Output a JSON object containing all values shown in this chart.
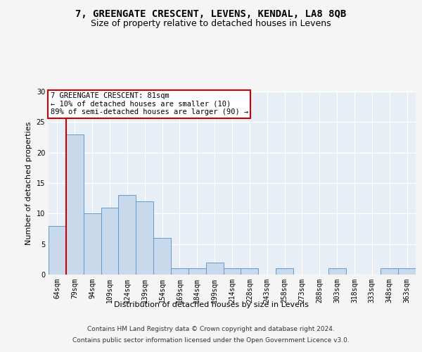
{
  "title_line1": "7, GREENGATE CRESCENT, LEVENS, KENDAL, LA8 8QB",
  "title_line2": "Size of property relative to detached houses in Levens",
  "xlabel": "Distribution of detached houses by size in Levens",
  "ylabel": "Number of detached properties",
  "categories": [
    "64sqm",
    "79sqm",
    "94sqm",
    "109sqm",
    "124sqm",
    "139sqm",
    "154sqm",
    "169sqm",
    "184sqm",
    "199sqm",
    "214sqm",
    "228sqm",
    "243sqm",
    "258sqm",
    "273sqm",
    "288sqm",
    "303sqm",
    "318sqm",
    "333sqm",
    "348sqm",
    "363sqm"
  ],
  "values": [
    8,
    23,
    10,
    11,
    13,
    12,
    6,
    1,
    1,
    2,
    1,
    1,
    0,
    1,
    0,
    0,
    1,
    0,
    0,
    1,
    1
  ],
  "bar_color": "#c9d9ec",
  "bar_edge_color": "#6699cc",
  "ylim": [
    0,
    30
  ],
  "yticks": [
    0,
    5,
    10,
    15,
    20,
    25,
    30
  ],
  "vline_color": "#cc0000",
  "annotation_text": "7 GREENGATE CRESCENT: 81sqm\n← 10% of detached houses are smaller (10)\n89% of semi-detached houses are larger (90) →",
  "annotation_box_color": "#ffffff",
  "annotation_box_edge_color": "#cc0000",
  "footnote_line1": "Contains HM Land Registry data © Crown copyright and database right 2024.",
  "footnote_line2": "Contains public sector information licensed under the Open Government Licence v3.0.",
  "background_color": "#e8eef5",
  "grid_color": "#ffffff",
  "fig_bg_color": "#f5f5f5",
  "title_fontsize": 10,
  "subtitle_fontsize": 9,
  "label_fontsize": 8,
  "tick_fontsize": 7,
  "footnote_fontsize": 6.5,
  "annot_fontsize": 7.5
}
